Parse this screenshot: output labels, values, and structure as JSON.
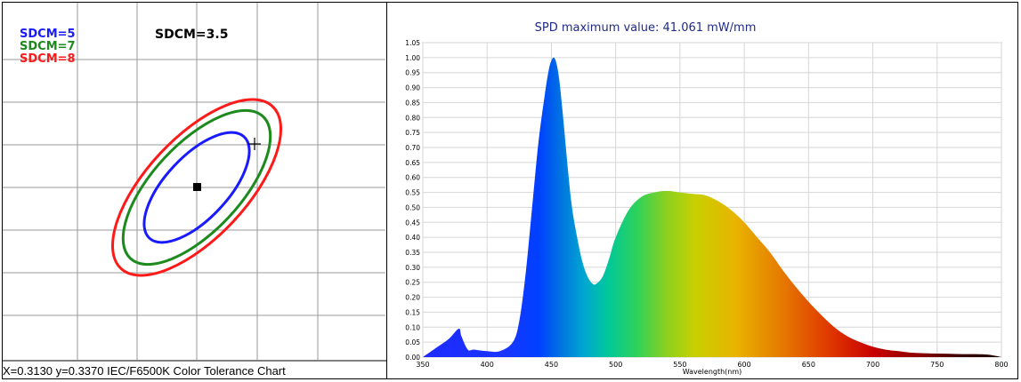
{
  "chart_data": [
    {
      "type": "scatter",
      "title": "",
      "caption": "X=0.3130 y=0.3370 IEC/F6500K Color Tolerance Chart",
      "legend": {
        "placement": "top-left",
        "entries": [
          {
            "label": "SDCM=5",
            "color": "#1a1aff"
          },
          {
            "label": "SDCM=7",
            "color": "#1c8a1c"
          },
          {
            "label": "SDCM=8",
            "color": "#ff1a1a"
          }
        ]
      },
      "annotation": "SDCM=3.5",
      "grid": true,
      "markers": [
        {
          "kind": "square",
          "label": "target"
        },
        {
          "kind": "cross",
          "label": "measured"
        }
      ],
      "ellipses": [
        {
          "name": "SDCM=5",
          "color": "#1a1aff",
          "scale": 5
        },
        {
          "name": "SDCM=7",
          "color": "#1c8a1c",
          "scale": 7
        },
        {
          "name": "SDCM=8",
          "color": "#ff1a1a",
          "scale": 8
        }
      ]
    },
    {
      "type": "area",
      "title": "SPD maximum value: 41.061 mW/mm",
      "xlabel": "Wavelength(nm)",
      "ylabel": "",
      "xlim": [
        350,
        800
      ],
      "ylim": [
        0,
        1.05
      ],
      "xticks": [
        "350",
        "400",
        "450",
        "500",
        "550",
        "600",
        "650",
        "700",
        "750",
        "800"
      ],
      "yticks": [
        "0.00",
        "0.05",
        "0.10",
        "0.15",
        "0.20",
        "0.25",
        "0.30",
        "0.35",
        "0.40",
        "0.45",
        "0.50",
        "0.55",
        "0.60",
        "0.65",
        "0.70",
        "0.75",
        "0.80",
        "0.85",
        "0.90",
        "0.95",
        "1.00",
        "1.05"
      ],
      "grid": true,
      "fill": "spectral",
      "series": [
        {
          "x": [
            350,
            360,
            370,
            378,
            380,
            385,
            390,
            400,
            410,
            420,
            425,
            430,
            435,
            440,
            445,
            448,
            450,
            452,
            454,
            456,
            458,
            460,
            463,
            466,
            470,
            474,
            478,
            482,
            485,
            490,
            495,
            500,
            510,
            520,
            530,
            540,
            550,
            560,
            570,
            580,
            590,
            600,
            610,
            620,
            630,
            640,
            650,
            660,
            670,
            680,
            690,
            700,
            710,
            720,
            730,
            740,
            750,
            760,
            770,
            780,
            790,
            800
          ],
          "y": [
            0.0,
            0.03,
            0.06,
            0.095,
            0.07,
            0.025,
            0.025,
            0.02,
            0.02,
            0.05,
            0.12,
            0.28,
            0.5,
            0.72,
            0.88,
            0.96,
            0.99,
            1.0,
            0.98,
            0.93,
            0.85,
            0.76,
            0.62,
            0.5,
            0.4,
            0.32,
            0.27,
            0.245,
            0.245,
            0.27,
            0.33,
            0.4,
            0.49,
            0.535,
            0.55,
            0.555,
            0.55,
            0.545,
            0.54,
            0.52,
            0.49,
            0.45,
            0.4,
            0.35,
            0.29,
            0.235,
            0.185,
            0.14,
            0.1,
            0.07,
            0.05,
            0.035,
            0.025,
            0.02,
            0.015,
            0.013,
            0.012,
            0.011,
            0.01,
            0.01,
            0.008,
            0.0
          ]
        }
      ]
    }
  ]
}
